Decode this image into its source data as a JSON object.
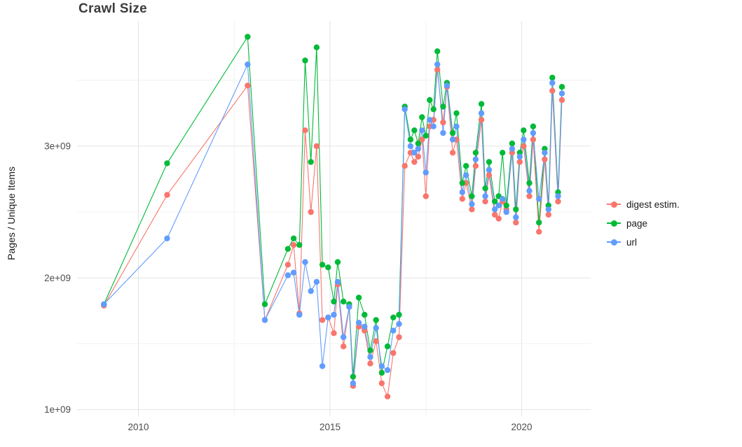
{
  "title": "Crawl Size",
  "legend": {
    "items": [
      {
        "label": "digest estim.",
        "color": "#F8766D"
      },
      {
        "label": "page",
        "color": "#00BA38"
      },
      {
        "label": "url",
        "color": "#619CFF"
      }
    ]
  },
  "chart_data": {
    "type": "line",
    "title": "Crawl Size",
    "xlabel": "",
    "ylabel": "Pages / Unique Items",
    "legend_position": "right",
    "grid": true,
    "xlim": [
      2008.4,
      2021.8
    ],
    "ylim_e9": [
      0.95,
      3.95
    ],
    "y_values_unit": "1e9",
    "xticks": [
      {
        "value": 2010,
        "label": "2010"
      },
      {
        "value": 2015,
        "label": "2015"
      },
      {
        "value": 2020,
        "label": "2020"
      }
    ],
    "xticks_minor": [
      2012.5,
      2017.5
    ],
    "yticks": [
      {
        "value_e9": 1,
        "label": "1e+09"
      },
      {
        "value_e9": 2,
        "label": "2e+09"
      },
      {
        "value_e9": 3,
        "label": "3e+09"
      }
    ],
    "yticks_minor_e9": [
      1.5,
      2.5,
      3.5
    ],
    "x": [
      2009.1,
      2010.75,
      2012.85,
      2013.3,
      2013.9,
      2014.05,
      2014.2,
      2014.35,
      2014.5,
      2014.65,
      2014.8,
      2014.95,
      2015.1,
      2015.2,
      2015.35,
      2015.5,
      2015.6,
      2015.75,
      2015.9,
      2016.05,
      2016.2,
      2016.35,
      2016.5,
      2016.65,
      2016.8,
      2016.95,
      2017.1,
      2017.2,
      2017.3,
      2017.4,
      2017.5,
      2017.6,
      2017.7,
      2017.8,
      2017.95,
      2018.05,
      2018.2,
      2018.3,
      2018.45,
      2018.55,
      2018.7,
      2018.8,
      2018.95,
      2019.05,
      2019.15,
      2019.3,
      2019.4,
      2019.5,
      2019.6,
      2019.75,
      2019.85,
      2019.95,
      2020.05,
      2020.2,
      2020.3,
      2020.45,
      2020.6,
      2020.7,
      2020.8,
      2020.95,
      2021.05
    ],
    "series": [
      {
        "name": "digest estim.",
        "color": "#F8766D",
        "values_e9": [
          1.79,
          2.63,
          3.46,
          1.68,
          2.1,
          2.25,
          1.73,
          3.12,
          2.5,
          3.0,
          1.68,
          1.7,
          1.58,
          1.95,
          1.48,
          1.78,
          1.18,
          1.63,
          1.6,
          1.35,
          1.52,
          1.2,
          1.1,
          1.43,
          1.55,
          2.85,
          2.95,
          2.88,
          2.92,
          3.05,
          2.62,
          3.15,
          3.2,
          3.58,
          3.18,
          3.45,
          2.95,
          3.05,
          2.6,
          2.72,
          2.52,
          2.85,
          3.2,
          2.58,
          2.78,
          2.48,
          2.45,
          2.58,
          2.52,
          2.95,
          2.42,
          2.88,
          3.0,
          2.62,
          3.05,
          2.35,
          2.9,
          2.48,
          3.42,
          2.58,
          3.35
        ]
      },
      {
        "name": "page",
        "color": "#00BA38",
        "values_e9": [
          1.8,
          2.87,
          3.83,
          1.8,
          2.22,
          2.3,
          2.25,
          3.65,
          2.88,
          3.75,
          2.1,
          2.08,
          1.82,
          2.12,
          1.82,
          1.8,
          1.25,
          1.85,
          1.72,
          1.45,
          1.68,
          1.28,
          1.48,
          1.7,
          1.72,
          3.3,
          3.05,
          3.12,
          3.02,
          3.22,
          3.08,
          3.35,
          3.28,
          3.72,
          3.3,
          3.48,
          3.1,
          3.25,
          2.72,
          2.85,
          2.62,
          2.95,
          3.32,
          2.68,
          2.88,
          2.58,
          2.62,
          2.95,
          2.55,
          3.02,
          2.52,
          2.95,
          3.12,
          2.72,
          3.15,
          2.42,
          2.98,
          2.55,
          3.52,
          2.65,
          3.45
        ]
      },
      {
        "name": "url",
        "color": "#619CFF",
        "values_e9": [
          1.8,
          2.3,
          3.62,
          1.68,
          2.02,
          2.04,
          1.72,
          2.12,
          1.9,
          1.97,
          1.33,
          1.7,
          1.72,
          1.97,
          1.55,
          1.78,
          1.2,
          1.66,
          1.63,
          1.4,
          1.62,
          1.33,
          1.3,
          1.6,
          1.65,
          3.28,
          3.0,
          2.95,
          2.98,
          3.12,
          2.8,
          3.2,
          3.15,
          3.62,
          3.1,
          3.46,
          3.05,
          3.15,
          2.65,
          2.78,
          2.56,
          2.9,
          3.25,
          2.62,
          2.82,
          2.52,
          2.55,
          2.6,
          2.5,
          2.98,
          2.46,
          2.92,
          3.05,
          2.66,
          3.1,
          2.6,
          2.95,
          2.52,
          3.48,
          2.62,
          3.4
        ]
      }
    ],
    "style": {
      "grid_major_color": "#e4e4e4",
      "grid_minor_color": "#f2f2f2",
      "axis_text_color": "#4d4d4d",
      "point_radius": 4.2,
      "line_width": 1.1
    }
  }
}
